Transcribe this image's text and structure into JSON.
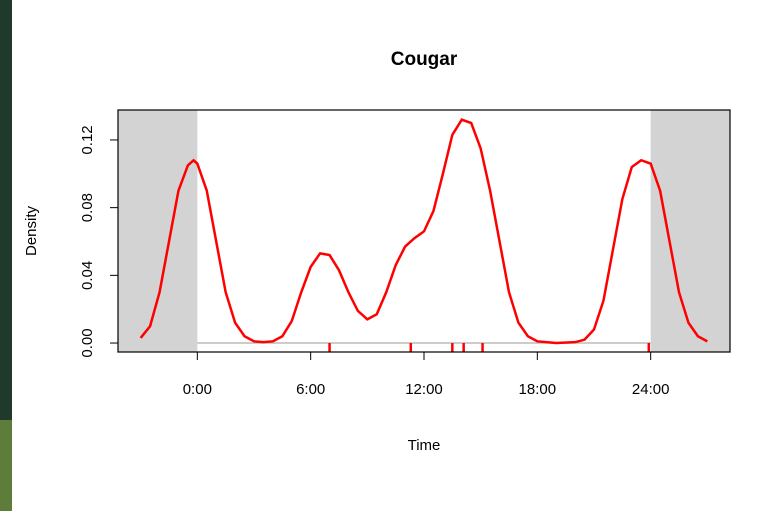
{
  "chart_data": {
    "type": "line",
    "title": "Cougar",
    "xlabel": "Time",
    "ylabel": "Density",
    "color": "#ff0000",
    "x": [
      -3,
      -2.5,
      -2,
      -1.5,
      -1,
      -0.5,
      -0.2,
      0,
      0.5,
      1,
      1.5,
      2,
      2.5,
      3,
      3.5,
      4,
      4.5,
      5,
      5.5,
      6,
      6.5,
      7,
      7.5,
      8,
      8.5,
      9,
      9.5,
      10,
      10.5,
      11,
      11.5,
      12,
      12.5,
      13,
      13.5,
      14,
      14.5,
      15,
      15.5,
      16,
      16.5,
      17,
      17.5,
      18,
      19,
      20,
      20.5,
      21,
      21.5,
      22,
      22.5,
      23,
      23.5,
      24,
      24.5,
      25,
      25.5,
      26,
      26.5,
      27
    ],
    "values": [
      0.003,
      0.01,
      0.03,
      0.06,
      0.09,
      0.105,
      0.108,
      0.106,
      0.09,
      0.06,
      0.03,
      0.012,
      0.004,
      0.001,
      0.0005,
      0.001,
      0.004,
      0.013,
      0.03,
      0.045,
      0.053,
      0.052,
      0.043,
      0.03,
      0.019,
      0.014,
      0.017,
      0.03,
      0.046,
      0.057,
      0.062,
      0.066,
      0.078,
      0.1,
      0.123,
      0.132,
      0.13,
      0.115,
      0.09,
      0.06,
      0.03,
      0.012,
      0.004,
      0.001,
      0,
      0.0005,
      0.002,
      0.008,
      0.025,
      0.055,
      0.085,
      0.104,
      0.108,
      0.106,
      0.09,
      0.06,
      0.03,
      0.012,
      0.004,
      0.001
    ],
    "rug": [
      7.0,
      11.3,
      13.5,
      14.1,
      15.1,
      23.9
    ],
    "xlim": [
      -4.2,
      28.2
    ],
    "ylim": [
      -0.0053,
      0.1377
    ],
    "xticks": [
      {
        "value": 0,
        "label": "0:00"
      },
      {
        "value": 6,
        "label": "6:00"
      },
      {
        "value": 12,
        "label": "12:00"
      },
      {
        "value": 18,
        "label": "18:00"
      },
      {
        "value": 24,
        "label": "24:00"
      }
    ],
    "yticks": [
      {
        "value": 0,
        "label": "0.00"
      },
      0.04,
      0.08,
      0.12
    ]
  }
}
